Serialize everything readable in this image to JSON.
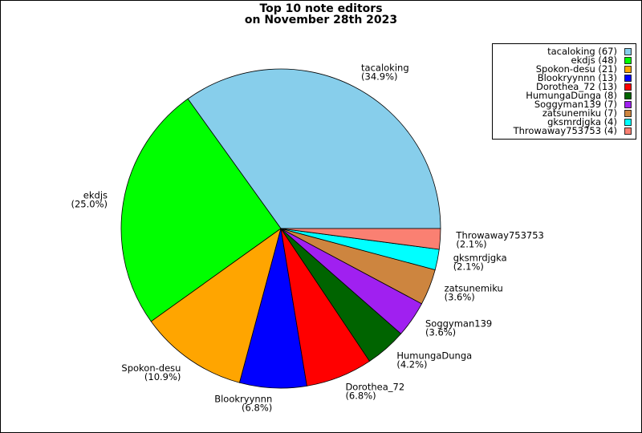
{
  "chart_data": {
    "type": "pie",
    "title": "Top 10 note editors",
    "subtitle": "on November 28th 2023",
    "categories": [
      "tacaloking",
      "ekdjs",
      "Spokon-desu",
      "Blookryynnn",
      "Dorothea_72",
      "HumungaDunga",
      "Soggyman139",
      "zatsunemiku",
      "gksmrdjgka",
      "Throwaway753753"
    ],
    "values": [
      67,
      48,
      21,
      13,
      13,
      8,
      7,
      7,
      4,
      4
    ],
    "percent_labels": [
      "(34.9%)",
      "(25.0%)",
      "(10.9%)",
      "(6.8%)",
      "(6.8%)",
      "(4.2%)",
      "(3.6%)",
      "(3.6%)",
      "(2.1%)",
      "(2.1%)"
    ],
    "legend_labels": [
      "tacaloking (67)",
      "ekdjs (48)",
      "Spokon-desu (21)",
      "Blookryynnn (13)",
      "Dorothea_72 (13)",
      "HumungaDunga (8)",
      "Soggyman139 (7)",
      "zatsunemiku (7)",
      "gksmrdjgka (4)",
      "Throwaway753753 (4)"
    ],
    "colors": [
      "#87ceeb",
      "#00ff00",
      "#ffa500",
      "#0000ff",
      "#ff0000",
      "#006400",
      "#a020f0",
      "#cd853f",
      "#00ffff",
      "#fa8072"
    ],
    "legend_position": "upper right"
  }
}
